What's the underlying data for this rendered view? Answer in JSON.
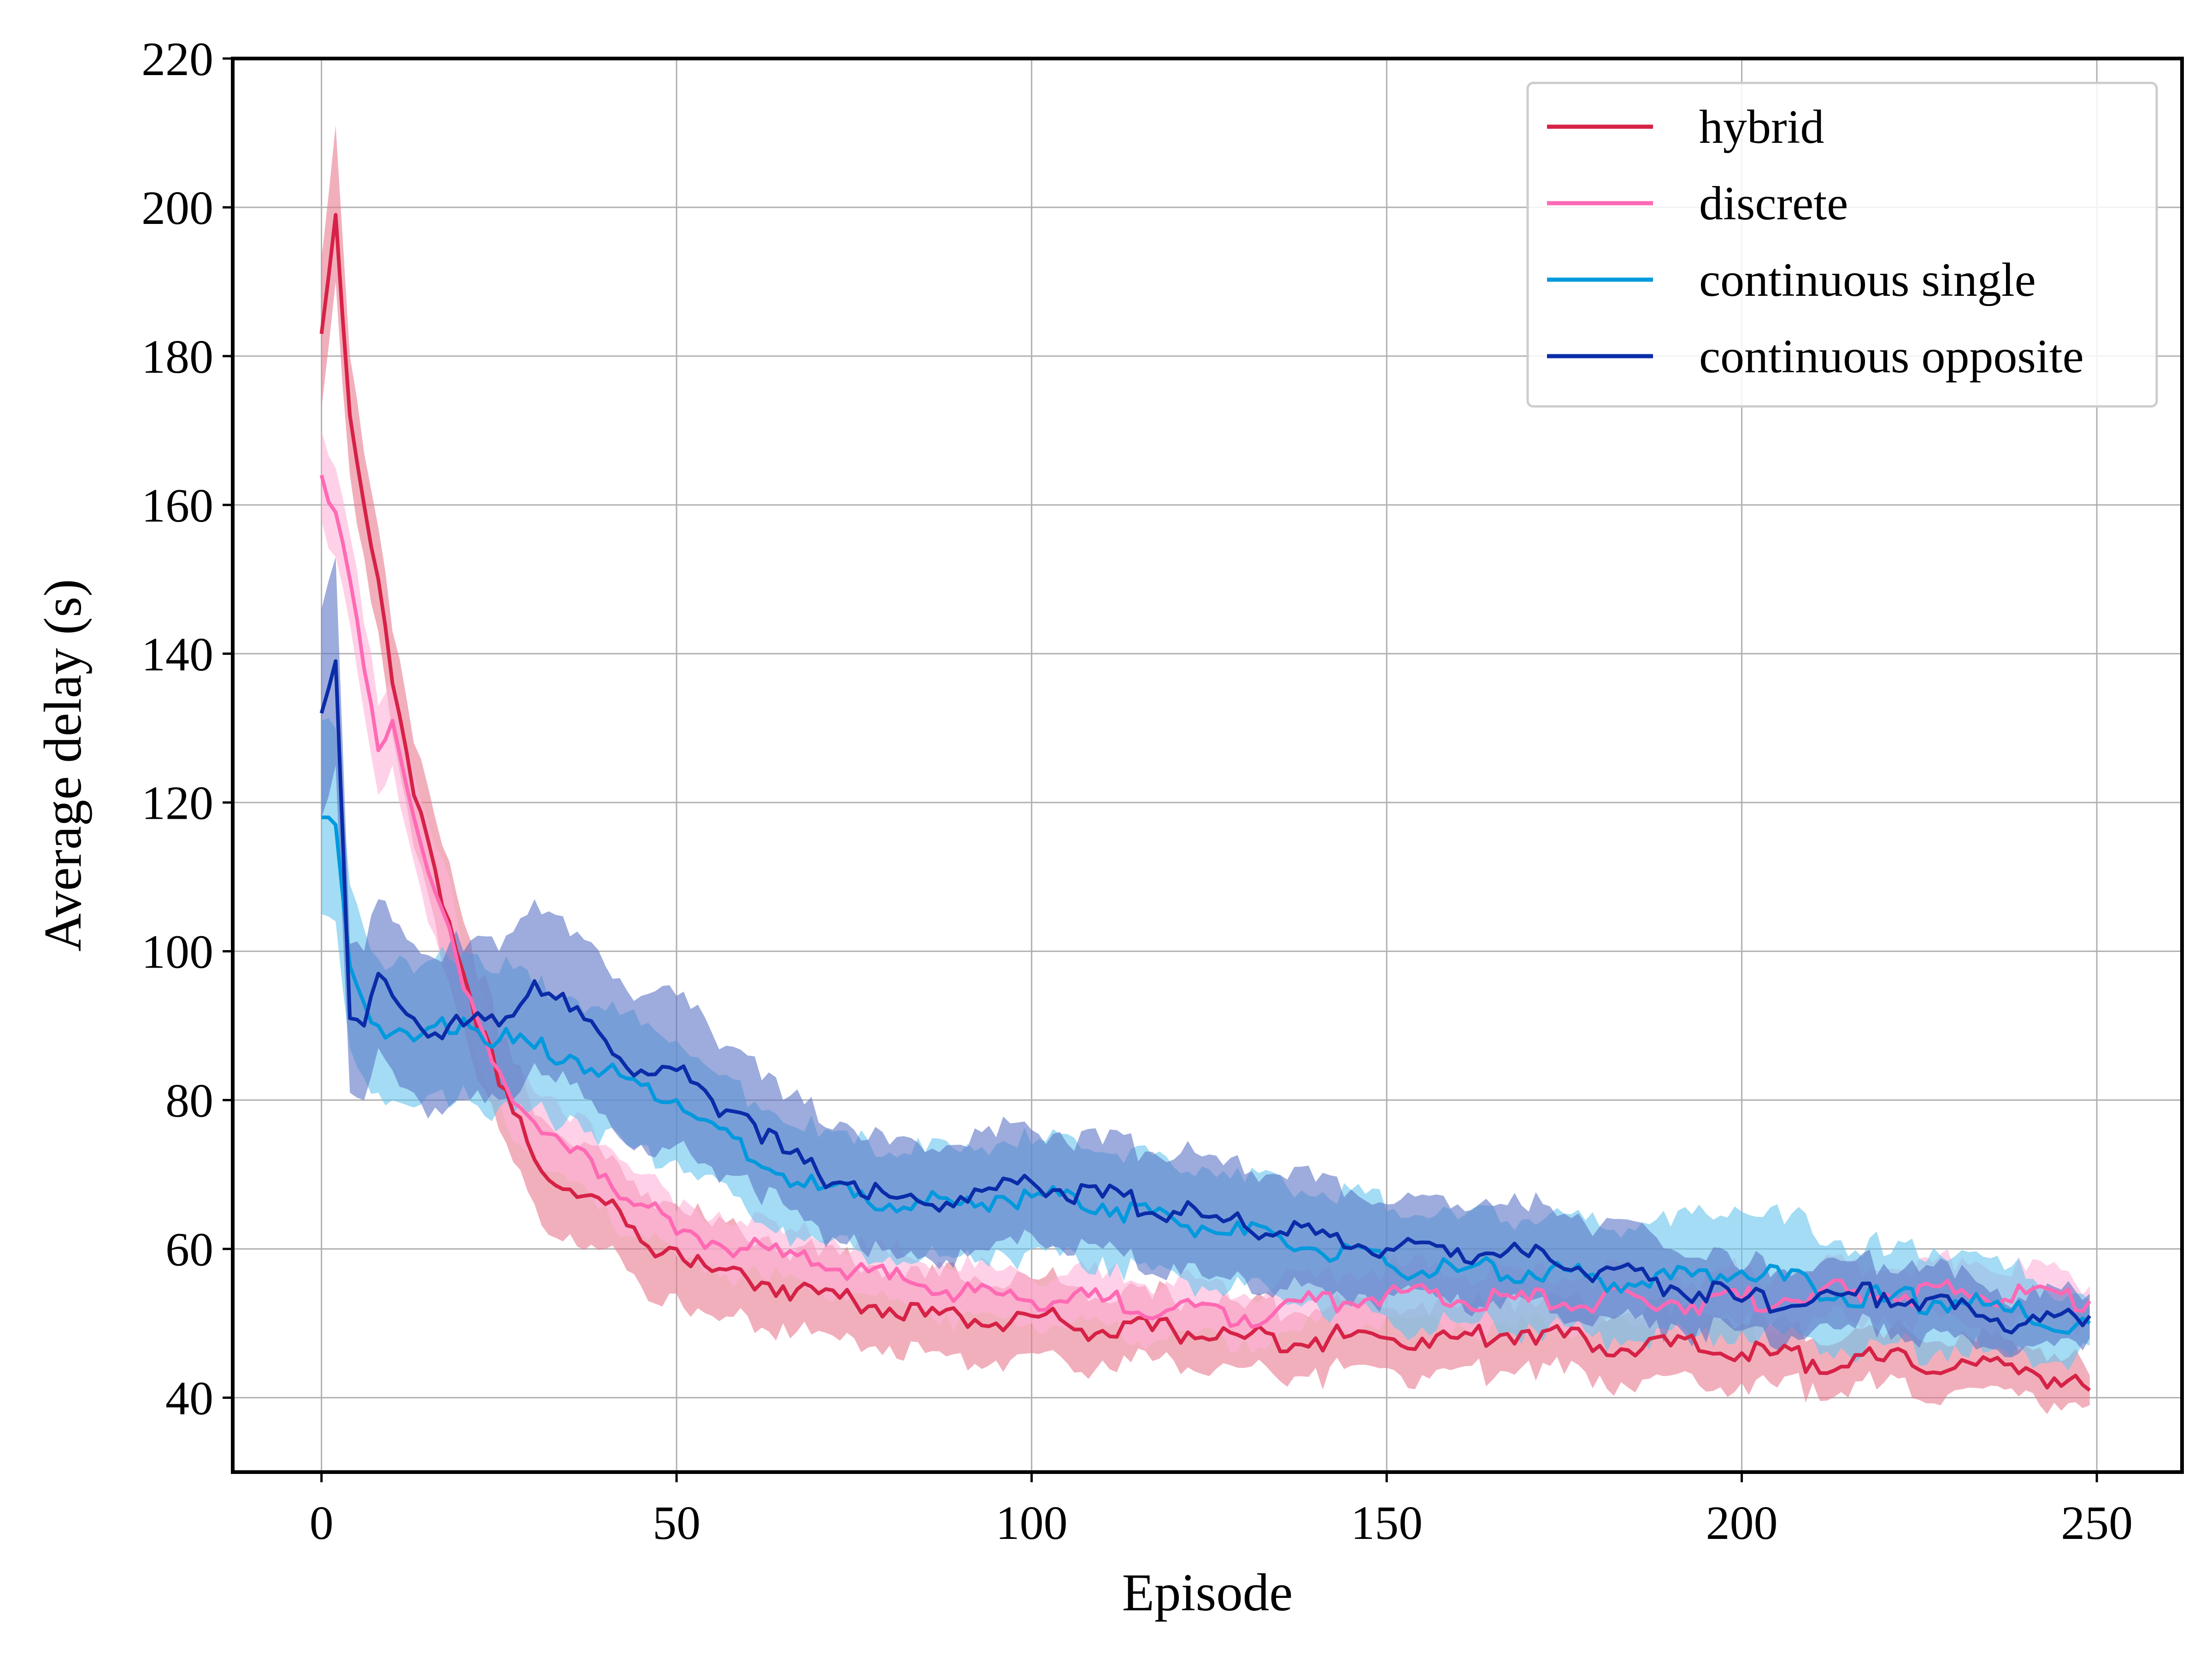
{
  "chart_data": {
    "type": "line",
    "title": "",
    "xlabel": "Episode",
    "ylabel": "Average delay (s)",
    "xlim": [
      -12.5,
      262
    ],
    "ylim": [
      30,
      220
    ],
    "xticks": [
      0,
      50,
      100,
      150,
      200,
      250
    ],
    "yticks": [
      40,
      60,
      80,
      100,
      120,
      140,
      160,
      180,
      200,
      220
    ],
    "grid": true,
    "legend_position": "top-right",
    "x_keypoints": [
      0,
      2,
      4,
      6,
      8,
      10,
      13,
      16,
      20,
      25,
      30,
      35,
      40,
      45,
      50,
      55,
      60,
      65,
      70,
      75,
      80,
      85,
      90,
      95,
      100,
      110,
      120,
      130,
      140,
      150,
      160,
      170,
      180,
      190,
      200,
      210,
      220,
      230,
      240,
      249
    ],
    "series": [
      {
        "name": "hybrid",
        "color": "#d62246",
        "band_color": "#e8798f",
        "values": [
          183,
          199,
          172,
          160,
          150,
          136,
          121,
          111,
          97,
          82,
          72,
          68,
          66,
          61,
          60,
          57,
          56,
          55,
          54,
          53,
          52,
          51,
          51,
          50,
          51,
          49,
          49,
          48,
          48,
          48,
          48,
          49,
          47,
          47,
          46,
          45,
          45,
          44,
          44,
          41
        ],
        "band": [
          [
            173,
            193
          ],
          [
            190,
            211
          ],
          [
            164,
            180
          ],
          [
            153,
            167
          ],
          [
            143,
            157
          ],
          [
            129,
            143
          ],
          [
            114,
            128
          ],
          [
            104,
            118
          ],
          [
            90,
            104
          ],
          [
            76,
            88
          ],
          [
            66,
            78
          ],
          [
            62,
            74
          ],
          [
            60,
            72
          ],
          [
            55,
            67
          ],
          [
            54,
            66
          ],
          [
            51,
            63
          ],
          [
            51,
            61
          ],
          [
            50,
            60
          ],
          [
            49,
            59
          ],
          [
            48,
            58
          ],
          [
            47,
            57
          ],
          [
            46,
            56
          ],
          [
            46,
            56
          ],
          [
            45,
            55
          ],
          [
            46,
            56
          ],
          [
            45,
            53
          ],
          [
            45,
            53
          ],
          [
            44,
            52
          ],
          [
            44,
            52
          ],
          [
            44,
            52
          ],
          [
            44,
            52
          ],
          [
            45,
            53
          ],
          [
            43,
            51
          ],
          [
            43,
            51
          ],
          [
            42,
            50
          ],
          [
            42,
            48
          ],
          [
            42,
            48
          ],
          [
            41,
            47
          ],
          [
            41,
            47
          ],
          [
            39,
            43
          ]
        ]
      },
      {
        "name": "discrete",
        "color": "#ff69b4",
        "band_color": "#ffb3d9",
        "values": [
          164,
          159,
          150,
          138,
          127,
          131,
          118,
          108,
          95,
          84,
          77,
          73,
          70,
          66,
          62,
          61,
          60,
          59,
          58,
          57,
          56,
          55,
          54,
          54,
          53,
          53,
          52,
          51,
          53,
          54,
          53,
          53,
          53,
          53,
          53,
          54,
          54,
          54,
          54,
          53
        ],
        "band": [
          [
            158,
            170
          ],
          [
            153,
            165
          ],
          [
            144,
            156
          ],
          [
            132,
            144
          ],
          [
            121,
            133
          ],
          [
            125,
            137
          ],
          [
            112,
            124
          ],
          [
            102,
            114
          ],
          [
            90,
            100
          ],
          [
            80,
            88
          ],
          [
            73,
            81
          ],
          [
            69,
            77
          ],
          [
            66,
            74
          ],
          [
            62,
            70
          ],
          [
            59,
            65
          ],
          [
            58,
            64
          ],
          [
            57,
            63
          ],
          [
            56,
            62
          ],
          [
            55,
            61
          ],
          [
            54,
            60
          ],
          [
            53,
            59
          ],
          [
            52,
            58
          ],
          [
            51,
            57
          ],
          [
            51,
            57
          ],
          [
            50,
            56
          ],
          [
            50,
            56
          ],
          [
            49,
            55
          ],
          [
            48,
            54
          ],
          [
            50,
            56
          ],
          [
            51,
            57
          ],
          [
            50,
            56
          ],
          [
            50,
            56
          ],
          [
            50,
            56
          ],
          [
            50,
            56
          ],
          [
            50,
            56
          ],
          [
            51,
            57
          ],
          [
            51,
            57
          ],
          [
            51,
            57
          ],
          [
            51,
            57
          ],
          [
            51,
            55
          ]
        ]
      },
      {
        "name": "continuous single",
        "color": "#0099dd",
        "band_color": "#66c4ec",
        "values": [
          118,
          117,
          98,
          93,
          90,
          89,
          88,
          90,
          91,
          88,
          87,
          86,
          84,
          82,
          80,
          77,
          72,
          70,
          68,
          67,
          66,
          66,
          66,
          67,
          67,
          66,
          64,
          62,
          60,
          58,
          57,
          57,
          56,
          56,
          57,
          55,
          53,
          53,
          51,
          50
        ],
        "band": [
          [
            105,
            131
          ],
          [
            104,
            130
          ],
          [
            87,
            109
          ],
          [
            83,
            103
          ],
          [
            81,
            99
          ],
          [
            80,
            98
          ],
          [
            79,
            97
          ],
          [
            81,
            99
          ],
          [
            82,
            100
          ],
          [
            79,
            97
          ],
          [
            79,
            95
          ],
          [
            78,
            94
          ],
          [
            76,
            92
          ],
          [
            74,
            90
          ],
          [
            72,
            88
          ],
          [
            70,
            84
          ],
          [
            65,
            79
          ],
          [
            63,
            77
          ],
          [
            61,
            75
          ],
          [
            60,
            74
          ],
          [
            59,
            73
          ],
          [
            59,
            73
          ],
          [
            59,
            73
          ],
          [
            60,
            74
          ],
          [
            60,
            74
          ],
          [
            59,
            73
          ],
          [
            57,
            71
          ],
          [
            55,
            69
          ],
          [
            53,
            67
          ],
          [
            51,
            65
          ],
          [
            50,
            64
          ],
          [
            50,
            64
          ],
          [
            49,
            63
          ],
          [
            49,
            63
          ],
          [
            49,
            65
          ],
          [
            48,
            62
          ],
          [
            47,
            59
          ],
          [
            47,
            59
          ],
          [
            46,
            56
          ],
          [
            47,
            53
          ]
        ]
      },
      {
        "name": "continuous opposite",
        "color": "#0a2ca8",
        "band_color": "#5c74c4",
        "values": [
          132,
          139,
          91,
          90,
          97,
          94,
          91,
          89,
          90,
          90,
          96,
          92,
          88,
          84,
          84,
          80,
          78,
          73,
          70,
          69,
          67,
          66,
          67,
          68,
          69,
          67,
          65,
          63,
          62,
          60,
          60,
          59,
          57,
          55,
          53,
          53,
          54,
          52,
          50,
          51
        ],
        "band": [
          [
            118,
            146
          ],
          [
            125,
            153
          ],
          [
            81,
            101
          ],
          [
            80,
            100
          ],
          [
            87,
            107
          ],
          [
            84,
            104
          ],
          [
            81,
            101
          ],
          [
            79,
            99
          ],
          [
            80,
            100
          ],
          [
            80,
            100
          ],
          [
            85,
            107
          ],
          [
            82,
            102
          ],
          [
            78,
            98
          ],
          [
            74,
            94
          ],
          [
            74,
            94
          ],
          [
            71,
            89
          ],
          [
            70,
            86
          ],
          [
            66,
            80
          ],
          [
            63,
            77
          ],
          [
            62,
            76
          ],
          [
            60,
            74
          ],
          [
            59,
            73
          ],
          [
            60,
            74
          ],
          [
            61,
            75
          ],
          [
            62,
            76
          ],
          [
            60,
            74
          ],
          [
            58,
            72
          ],
          [
            56,
            70
          ],
          [
            55,
            69
          ],
          [
            54,
            66
          ],
          [
            54,
            66
          ],
          [
            53,
            65
          ],
          [
            51,
            63
          ],
          [
            50,
            60
          ],
          [
            49,
            57
          ],
          [
            49,
            57
          ],
          [
            50,
            58
          ],
          [
            48,
            56
          ],
          [
            47,
            53
          ],
          [
            48,
            54
          ]
        ]
      }
    ]
  }
}
